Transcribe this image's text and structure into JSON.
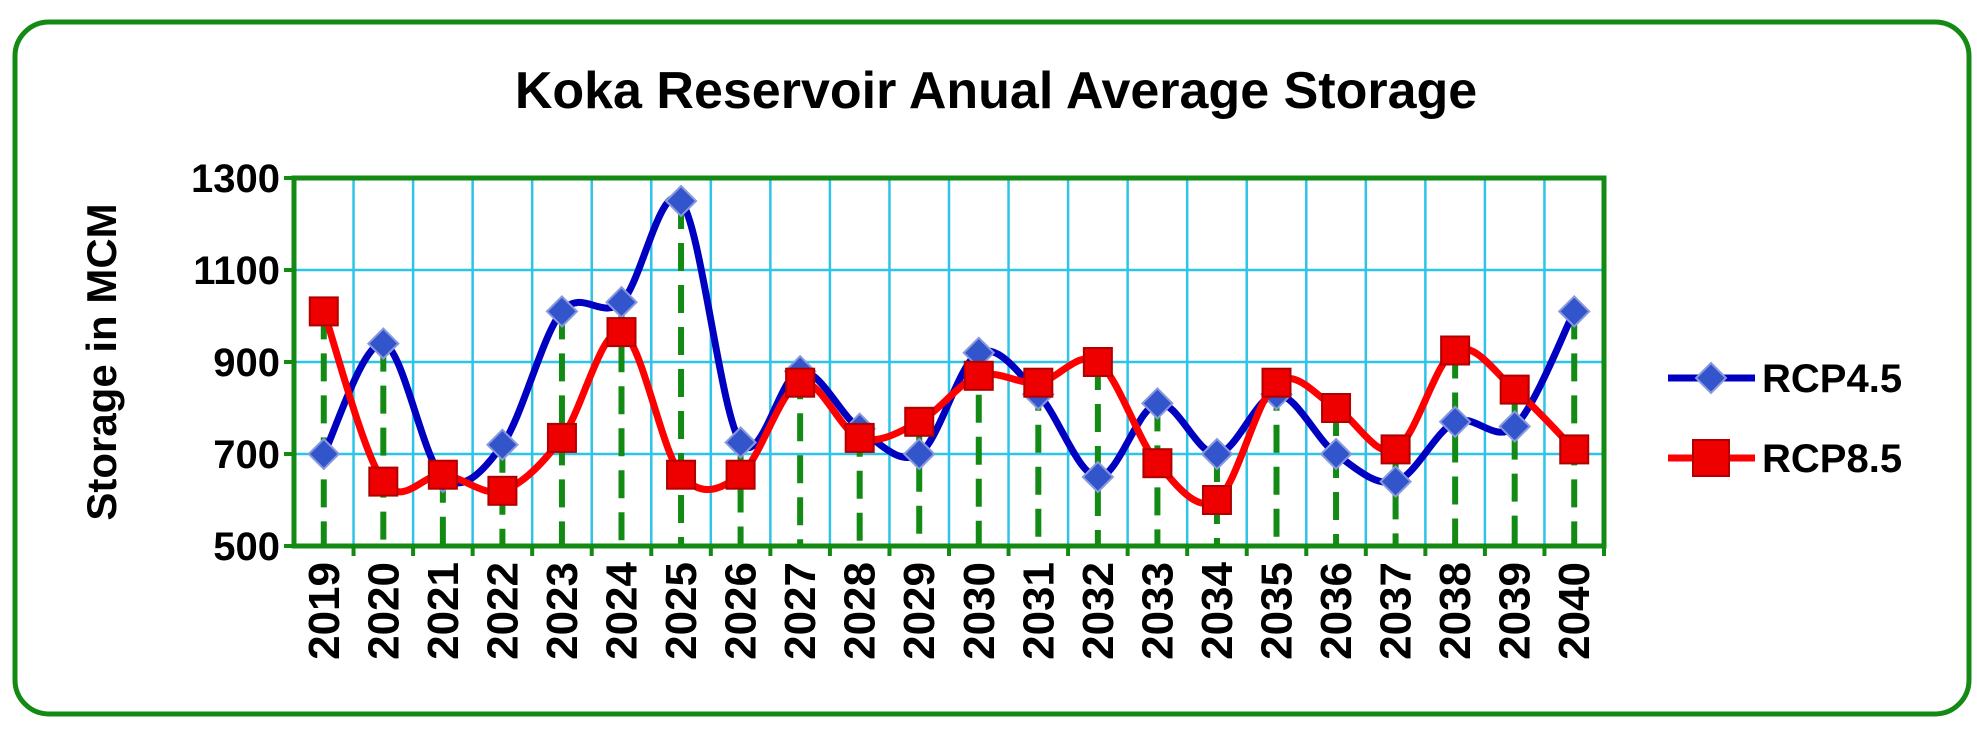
{
  "chart_data": {
    "type": "line",
    "title": "Koka Reservoir Anual Average Storage",
    "y_label": "Storage in MCM",
    "categories": [
      "2019",
      "2020",
      "2021",
      "2022",
      "2023",
      "2024",
      "2025",
      "2026",
      "2027",
      "2028",
      "2029",
      "2030",
      "2031",
      "2032",
      "2033",
      "2034",
      "2035",
      "2036",
      "2037",
      "2038",
      "2039",
      "2040"
    ],
    "series": [
      {
        "name": "RCP4.5",
        "color": "#0000c0",
        "marker": "diamond",
        "marker_color": "#3355cc",
        "values": [
          700,
          940,
          650,
          720,
          1010,
          1030,
          1250,
          725,
          880,
          755,
          700,
          920,
          830,
          650,
          810,
          700,
          830,
          700,
          640,
          770,
          760,
          1010
        ]
      },
      {
        "name": "RCP8.5",
        "color": "#ff0000",
        "marker": "square",
        "marker_color": "#ee0000",
        "values": [
          1010,
          640,
          655,
          620,
          735,
          965,
          655,
          655,
          855,
          735,
          770,
          870,
          855,
          900,
          680,
          600,
          855,
          800,
          710,
          925,
          840,
          710
        ]
      }
    ],
    "ylim": [
      500,
      1300
    ],
    "yticks": [
      500,
      700,
      900,
      1100,
      1300
    ],
    "grid": true,
    "smooth": true,
    "drop_lines": true,
    "legend": "right"
  }
}
